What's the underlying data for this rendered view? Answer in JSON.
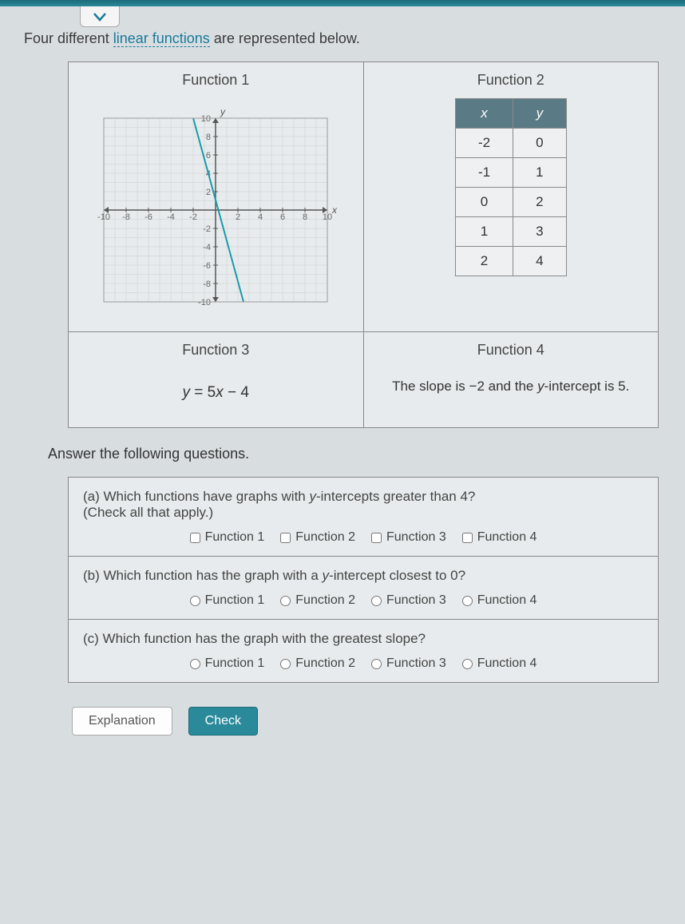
{
  "intro": {
    "prefix": "Four different ",
    "link_text": "linear functions",
    "suffix": " are represented below."
  },
  "functions": {
    "f1": {
      "title": "Function 1",
      "chart": {
        "type": "line",
        "xlim": [
          -10,
          10
        ],
        "ylim": [
          -10,
          10
        ],
        "xtick_step": 2,
        "ytick_step": 2,
        "xtick_labels": [
          "-10",
          "-8",
          "-6",
          "-4",
          "-2",
          "",
          "2",
          "4",
          "6",
          "8",
          "10"
        ],
        "ytick_labels": [
          "-10",
          "-8",
          "-6",
          "-4",
          "-2",
          "",
          "2",
          "4",
          "6",
          "8",
          "10"
        ],
        "grid_color": "#c9cccd",
        "axis_color": "#555555",
        "background_color": "#e8ebed",
        "line_color": "#1a9aaa",
        "line_width": 2,
        "points": [
          [
            -2,
            10
          ],
          [
            2.5,
            -10
          ]
        ],
        "axis_labels": {
          "x": "x",
          "y": "y"
        },
        "label_fontsize": 11
      }
    },
    "f2": {
      "title": "Function 2",
      "table": {
        "columns": [
          "x",
          "y"
        ],
        "rows": [
          [
            "-2",
            "0"
          ],
          [
            "-1",
            "1"
          ],
          [
            "0",
            "2"
          ],
          [
            "1",
            "3"
          ],
          [
            "2",
            "4"
          ]
        ],
        "header_bg": "#5a7b85",
        "header_color": "#ffffff",
        "border_color": "#888888"
      }
    },
    "f3": {
      "title": "Function 3",
      "equation_lhs": "y",
      "equation_eq": " = ",
      "equation_rhs1": "5x",
      "equation_rhs2": " − 4"
    },
    "f4": {
      "title": "Function 4",
      "text_p1": "The slope is ",
      "text_slope": "−2",
      "text_p2": " and the ",
      "text_yint_label": "y",
      "text_p3": "-intercept is ",
      "text_yint": "5",
      "text_p4": "."
    }
  },
  "instruction": "Answer the following questions.",
  "questions": {
    "a": {
      "prompt_p1": "(a) Which functions have graphs with ",
      "prompt_y": "y",
      "prompt_p2": "-intercepts greater than 4?",
      "hint": "(Check all that apply.)",
      "options": [
        "Function 1",
        "Function 2",
        "Function 3",
        "Function 4"
      ]
    },
    "b": {
      "prompt_p1": "(b) Which function has the graph with a ",
      "prompt_y": "y",
      "prompt_p2": "-intercept closest to 0?",
      "options": [
        "Function 1",
        "Function 2",
        "Function 3",
        "Function 4"
      ]
    },
    "c": {
      "prompt": "(c) Which function has the graph with the greatest slope?",
      "options": [
        "Function 1",
        "Function 2",
        "Function 3",
        "Function 4"
      ]
    }
  },
  "buttons": {
    "explanation": "Explanation",
    "check": "Check"
  },
  "colors": {
    "page_bg": "#d8dde0",
    "accent": "#2a8a9a",
    "border": "#888888"
  }
}
